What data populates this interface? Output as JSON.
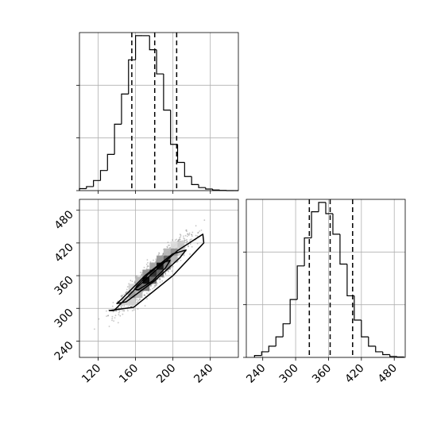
{
  "chart_data": [
    {
      "type": "histogram",
      "panel": "top-left marginal",
      "xlim": [
        100,
        270
      ],
      "bin_edges": [
        100,
        107.5,
        115,
        122.5,
        130,
        137.5,
        145,
        152.5,
        160,
        167.5,
        175,
        182.5,
        190,
        197.5,
        205,
        212.5,
        220,
        227.5,
        235,
        242.5,
        250,
        257.5,
        265,
        270
      ],
      "counts": [
        1,
        2,
        5,
        10,
        18,
        33,
        48,
        65,
        77,
        77,
        70,
        58,
        40,
        23,
        14,
        7,
        3,
        1.5,
        0.8,
        0.3,
        0.1,
        0,
        0
      ],
      "quantile_lines": [
        156,
        180.5,
        204
      ],
      "grid": true,
      "y_tick_labels": []
    },
    {
      "type": "histogram",
      "panel": "bottom-right marginal",
      "xlim": [
        210,
        500
      ],
      "bin_edges": [
        225,
        238,
        251,
        264,
        277,
        290,
        303,
        316,
        329,
        342,
        355,
        368,
        381,
        394,
        407,
        420,
        433,
        446,
        459,
        472,
        485,
        498
      ],
      "counts": [
        1,
        3,
        6,
        11,
        18,
        31,
        49,
        64,
        78,
        83,
        77,
        66,
        50,
        33,
        20,
        11,
        6,
        3,
        1.5,
        0.5,
        0.2
      ],
      "quantile_lines": [
        325,
        363,
        404
      ],
      "grid": true,
      "x_ticks": [
        240,
        300,
        360,
        420,
        480
      ],
      "x_tick_labels": [
        "240",
        "300",
        "360",
        "420",
        "480"
      ]
    },
    {
      "type": "scatter-density",
      "panel": "bottom-left joint",
      "xlim": [
        100,
        270
      ],
      "ylim": [
        210,
        500
      ],
      "x_ticks": [
        120,
        160,
        200,
        240
      ],
      "x_tick_labels": [
        "120",
        "160",
        "200",
        "240"
      ],
      "y_ticks": [
        240,
        300,
        360,
        420,
        480
      ],
      "y_tick_labels": [
        "240",
        "300",
        "360",
        "420",
        "480"
      ],
      "center": [
        180,
        365
      ],
      "sd": [
        17,
        30
      ],
      "correlation": 0.93,
      "grid": true,
      "contours": [
        {
          "level": "inner",
          "x": [
            162,
            175,
            190,
            197,
            192,
            178,
            163,
            159,
            162
          ],
          "y": [
            342,
            365,
            385,
            388,
            374,
            350,
            334,
            335,
            342
          ]
        },
        {
          "level": "middle",
          "x": [
            144,
            170,
            200,
            214,
            207,
            180,
            150,
            140,
            144
          ],
          "y": [
            315,
            360,
            400,
            407,
            392,
            350,
            312,
            309,
            315
          ]
        },
        {
          "level": "outer",
          "x": [
            137,
            160,
            205,
            232,
            233,
            200,
            158,
            132,
            137
          ],
          "y": [
            296,
            336,
            406,
            436,
            420,
            360,
            302,
            296,
            296
          ]
        }
      ]
    }
  ],
  "colors": {
    "line": "#000000",
    "grid": "#b0b0b0",
    "scatter": "#808080",
    "background": "#ffffff"
  }
}
